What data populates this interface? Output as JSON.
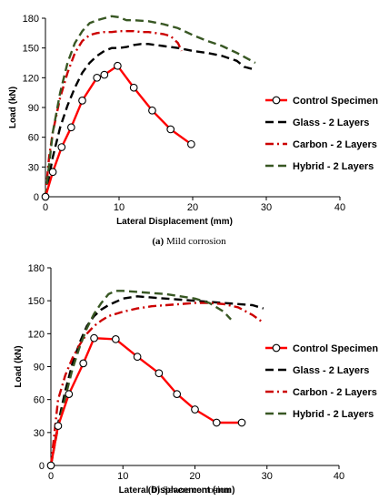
{
  "chart_data": [
    {
      "type": "line",
      "caption_label": "(a)",
      "caption_text": "Mild corrosion",
      "xlabel": "Lateral Displacement (mm)",
      "ylabel": "Load (kN)",
      "xlim": [
        0,
        40
      ],
      "ylim": [
        0,
        180
      ],
      "xticks": [
        0,
        10,
        20,
        30,
        40
      ],
      "yticks": [
        0,
        30,
        60,
        90,
        120,
        150,
        180
      ],
      "grid": false,
      "legend_position": "right",
      "series": [
        {
          "name": "Control Specimen",
          "color": "#ff0000",
          "style": "solid-markers",
          "x": [
            0,
            1,
            2.2,
            3.5,
            5,
            7,
            8,
            9.8,
            12,
            14.5,
            17,
            19.8
          ],
          "y": [
            0,
            25,
            50,
            70,
            97,
            120,
            123,
            132,
            110,
            87,
            68,
            53
          ]
        },
        {
          "name": "Glass - 2 Layers",
          "color": "#000000",
          "style": "dash",
          "x": [
            0,
            1,
            2,
            3,
            4,
            5,
            6,
            7,
            8,
            9,
            10,
            11,
            12,
            13,
            14,
            15,
            16,
            18,
            20,
            22,
            24,
            26,
            27,
            28.5
          ],
          "y": [
            0,
            40,
            70,
            92,
            110,
            125,
            135,
            142,
            147,
            150,
            150,
            151,
            153,
            154,
            154,
            153,
            152,
            150,
            147,
            145,
            142,
            137,
            131,
            128
          ]
        },
        {
          "name": "Carbon - 2 Layers",
          "color": "#cc0000",
          "style": "dashdot",
          "x": [
            0,
            0.5,
            1,
            2,
            3,
            4,
            5,
            6,
            7,
            8,
            9,
            10,
            11,
            12,
            13,
            14,
            15,
            16,
            17,
            18,
            18.5
          ],
          "y": [
            0,
            40,
            65,
            100,
            125,
            145,
            157,
            163,
            165,
            166,
            166,
            167,
            167,
            167,
            166,
            166,
            165,
            164,
            162,
            155,
            147
          ]
        },
        {
          "name": "Hybrid - 2 Layers",
          "color": "#385723",
          "style": "dash",
          "x": [
            0,
            1,
            2,
            3,
            4,
            5,
            6,
            7,
            8,
            9,
            10,
            11,
            12,
            14,
            16,
            18,
            20,
            22,
            24,
            26,
            28,
            28.5
          ],
          "y": [
            0,
            65,
            105,
            135,
            155,
            167,
            175,
            178,
            180,
            182,
            181,
            178,
            178,
            177,
            174,
            170,
            163,
            157,
            152,
            145,
            137,
            135
          ]
        }
      ]
    },
    {
      "type": "line",
      "caption_label": "(b)",
      "caption_text": "Severe corrosion",
      "xlabel": "Lateral Displacement (mm)",
      "ylabel": "Load (kN)",
      "xlim": [
        0,
        40
      ],
      "ylim": [
        0,
        180
      ],
      "xticks": [
        0,
        10,
        20,
        30,
        40
      ],
      "yticks": [
        0,
        30,
        60,
        90,
        120,
        150,
        180
      ],
      "grid": false,
      "legend_position": "right",
      "series": [
        {
          "name": "Control Specimen",
          "color": "#ff0000",
          "style": "solid-markers",
          "x": [
            0,
            1,
            2.5,
            4.5,
            6,
            9,
            12,
            15,
            17.5,
            20,
            23,
            26.5
          ],
          "y": [
            0,
            36,
            65,
            93,
            116,
            115,
            99,
            84,
            65,
            51,
            39,
            39
          ]
        },
        {
          "name": "Glass - 2 Layers",
          "color": "#000000",
          "style": "dash",
          "x": [
            0,
            1,
            2,
            3,
            4,
            5,
            6,
            7,
            8,
            9,
            10,
            12,
            14,
            16,
            18,
            20,
            22,
            24,
            26,
            28,
            29.5
          ],
          "y": [
            0,
            38,
            68,
            93,
            112,
            127,
            136,
            142,
            146,
            149,
            152,
            154,
            153,
            152,
            151,
            150,
            149,
            148,
            147,
            146,
            143
          ]
        },
        {
          "name": "Carbon - 2 Layers",
          "color": "#cc0000",
          "style": "dashdot",
          "x": [
            0,
            1,
            2,
            3,
            4,
            5,
            6,
            7,
            8,
            10,
            12,
            14,
            16,
            18,
            20,
            22,
            24,
            26,
            28,
            29.5
          ],
          "y": [
            0,
            60,
            82,
            98,
            110,
            120,
            127,
            132,
            136,
            140,
            143,
            145,
            146,
            147,
            148,
            148,
            147,
            144,
            137,
            130
          ]
        },
        {
          "name": "Hybrid - 2 Layers",
          "color": "#385723",
          "style": "dash",
          "x": [
            0,
            1,
            2,
            3,
            4,
            5,
            6,
            7,
            8,
            9,
            10,
            12,
            14,
            16,
            18,
            20,
            22,
            24,
            25
          ],
          "y": [
            0,
            35,
            62,
            88,
            108,
            125,
            138,
            148,
            156,
            159,
            159,
            158,
            157,
            156,
            154,
            152,
            148,
            140,
            133
          ]
        }
      ]
    }
  ]
}
